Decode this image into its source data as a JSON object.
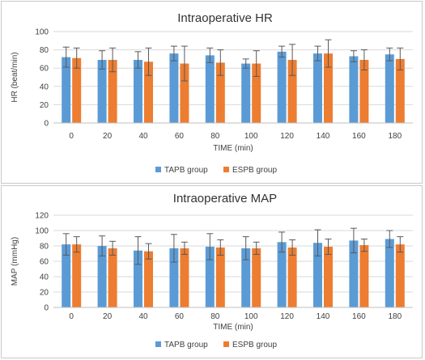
{
  "colors": {
    "tapb": "#5B9BD5",
    "espb": "#ED7D31",
    "grid": "#d9d9d9",
    "error": "#595959"
  },
  "chart_data": [
    {
      "type": "bar",
      "title": "Intraoperative HR",
      "xlabel": "TIME (min)",
      "ylabel": "HR (beat/min)",
      "ylim": [
        0,
        100
      ],
      "yticks": [
        0,
        20,
        40,
        60,
        80,
        100
      ],
      "categories": [
        "0",
        "20",
        "40",
        "60",
        "80",
        "100",
        "120",
        "140",
        "160",
        "180"
      ],
      "grid": true,
      "legend_position": "bottom",
      "series": [
        {
          "name": "TAPB group",
          "values": [
            72,
            69,
            69,
            76,
            74,
            65,
            78,
            76,
            73,
            75
          ],
          "errors": [
            11,
            10,
            9,
            8,
            8,
            5,
            6,
            8,
            6,
            7
          ]
        },
        {
          "name": "ESPB group",
          "values": [
            71,
            69,
            67,
            65,
            66,
            65,
            69,
            76,
            69,
            70
          ],
          "errors": [
            11,
            13,
            15,
            19,
            14,
            14,
            17,
            15,
            11,
            12
          ]
        }
      ]
    },
    {
      "type": "bar",
      "title": "Intraoperative MAP",
      "xlabel": "TIME (min)",
      "ylabel": "MAP (mmHg)",
      "ylim": [
        0,
        120
      ],
      "yticks": [
        0,
        20,
        40,
        60,
        80,
        100,
        120
      ],
      "categories": [
        "0",
        "20",
        "40",
        "60",
        "80",
        "100",
        "120",
        "140",
        "160",
        "180"
      ],
      "grid": true,
      "legend_position": "bottom",
      "series": [
        {
          "name": "TAPB group",
          "values": [
            82,
            80,
            74,
            77,
            79,
            77,
            85,
            84,
            87,
            89
          ],
          "errors": [
            14,
            13,
            18,
            18,
            17,
            15,
            13,
            17,
            16,
            11
          ]
        },
        {
          "name": "ESPB group",
          "values": [
            82,
            77,
            73,
            77,
            78,
            77,
            78,
            79,
            81,
            82
          ],
          "errors": [
            10,
            9,
            10,
            8,
            10,
            8,
            10,
            10,
            8,
            10
          ]
        }
      ]
    }
  ]
}
